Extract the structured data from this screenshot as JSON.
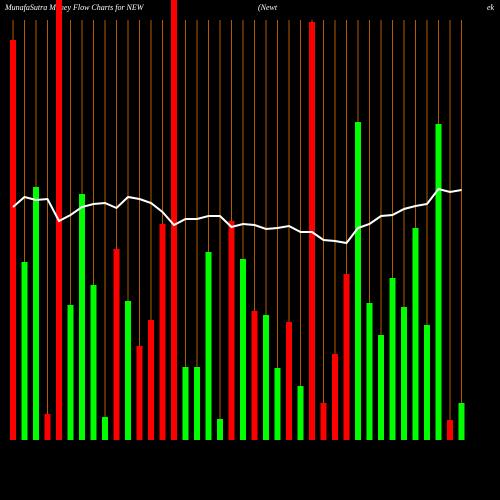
{
  "chart_data": {
    "type": "bar",
    "title_parts": [
      "MunafaSutra  Money Flow  Charts for NEW",
      "(Newt",
      "ek"
    ],
    "ylim": [
      0,
      440
    ],
    "grid": true,
    "grid_color": "#b35a00",
    "line_color": "#ffffff",
    "series": [
      {
        "name": "flow",
        "values": [
          400,
          178,
          253,
          26,
          440,
          135,
          246,
          155,
          23,
          191,
          139,
          94,
          120,
          216,
          440,
          73,
          73,
          188,
          21,
          219,
          181,
          129,
          125,
          72,
          118,
          54,
          418,
          37,
          86,
          166,
          318,
          137,
          105,
          162,
          133,
          212,
          115,
          316,
          20,
          37
        ],
        "colors": [
          "#ff0000",
          "#00ff00",
          "#00ff00",
          "#ff0000",
          "#ff0000",
          "#00ff00",
          "#00ff00",
          "#00ff00",
          "#00ff00",
          "#ff0000",
          "#00ff00",
          "#ff0000",
          "#ff0000",
          "#ff0000",
          "#ff0000",
          "#00ff00",
          "#00ff00",
          "#00ff00",
          "#00ff00",
          "#ff0000",
          "#00ff00",
          "#ff0000",
          "#00ff00",
          "#00ff00",
          "#ff0000",
          "#00ff00",
          "#ff0000",
          "#ff0000",
          "#ff0000",
          "#ff0000",
          "#00ff00",
          "#00ff00",
          "#00ff00",
          "#00ff00",
          "#00ff00",
          "#00ff00",
          "#00ff00",
          "#00ff00",
          "#ff0000",
          "#00ff00"
        ]
      },
      {
        "name": "price",
        "values": [
          233,
          243,
          240,
          241,
          219,
          225,
          233,
          236,
          237,
          232,
          243,
          241,
          237,
          228,
          215,
          221,
          221,
          224,
          224,
          213,
          216,
          215,
          211,
          212,
          214,
          208,
          208,
          200,
          199,
          197,
          212,
          216,
          224,
          225,
          231,
          234,
          236,
          251,
          248,
          250
        ]
      }
    ]
  }
}
